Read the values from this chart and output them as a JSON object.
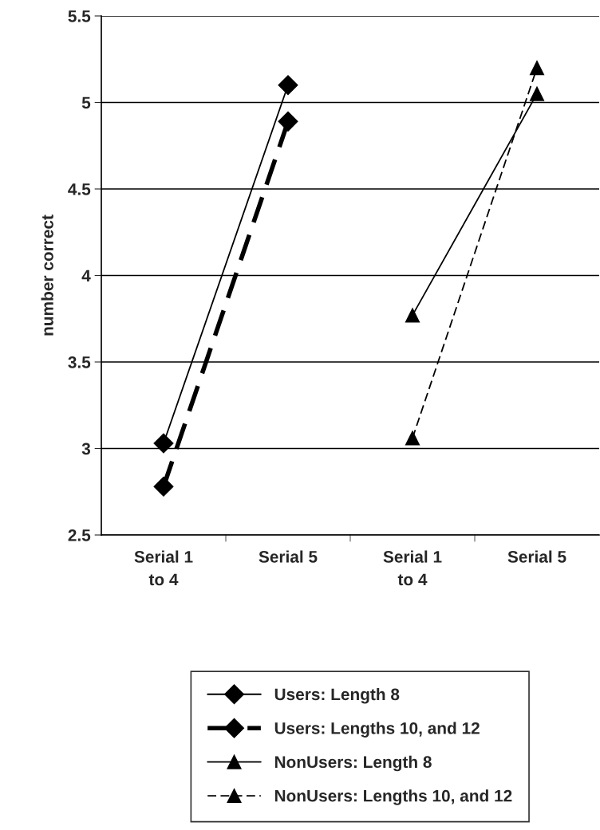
{
  "chart_data": {
    "type": "line",
    "ylabel": "number correct",
    "categories": [
      "Serial 1\nto 4",
      "Serial 5",
      "Serial 1\nto 4",
      "Serial 5"
    ],
    "series": [
      {
        "name": "Users: Length 8",
        "color": "#000000",
        "values": [
          3.03,
          5.1,
          null,
          null
        ],
        "marker": "diamond",
        "line_style": "solid"
      },
      {
        "name": "Users: Lengths 10, and 12",
        "color": "#000000",
        "values": [
          2.78,
          4.89,
          null,
          null
        ],
        "marker": "diamond",
        "line_style": "dashed"
      },
      {
        "name": "NonUsers: Length 8",
        "color": "#000000",
        "values": [
          null,
          null,
          3.77,
          5.05
        ],
        "marker": "triangle",
        "line_style": "solid"
      },
      {
        "name": "NonUsers: Lengths 10, and 12",
        "color": "#000000",
        "values": [
          null,
          null,
          3.06,
          5.2
        ],
        "marker": "triangle",
        "line_style": "dashed"
      }
    ],
    "ylim": [
      2.5,
      5.5
    ],
    "yticks": [
      2.5,
      3,
      3.5,
      4,
      4.5,
      5,
      5.5
    ],
    "grid": "y",
    "legend": "bottom"
  }
}
